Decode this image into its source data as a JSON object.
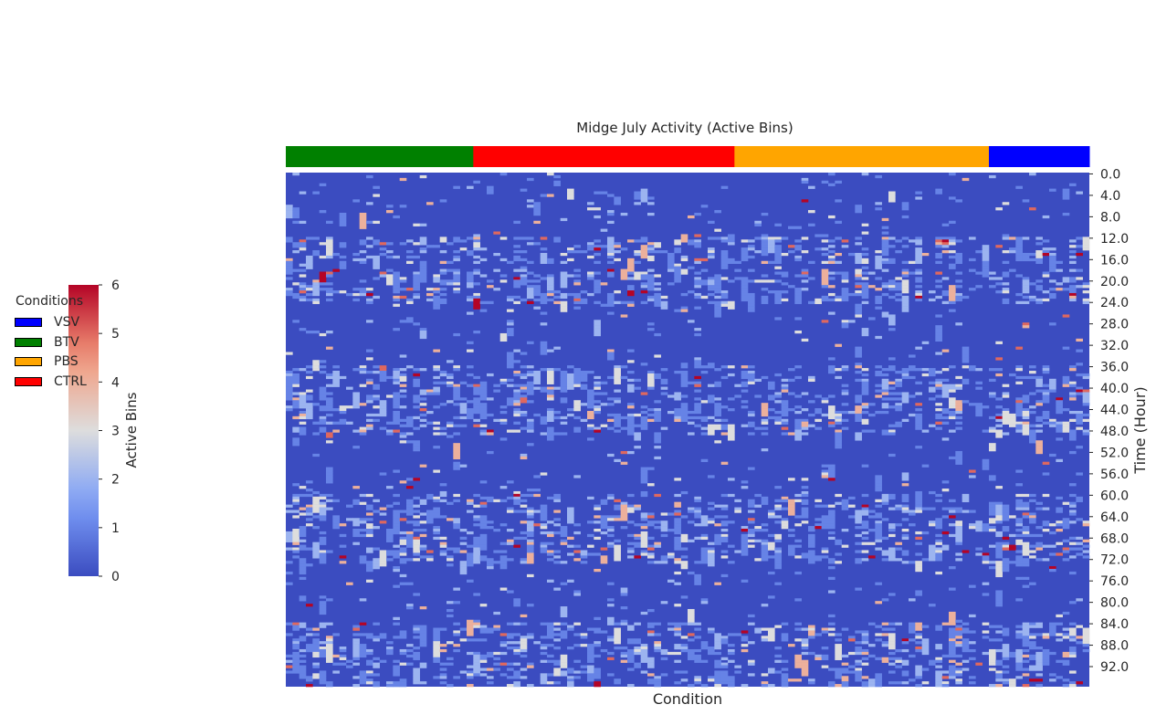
{
  "chart_data": {
    "type": "heatmap",
    "title": "Midge July Activity (Active Bins)",
    "xlabel": "Condition",
    "ylabel": "Time (Hour)",
    "y_tick_labels": [
      "0.0",
      "4.0",
      "8.0",
      "12.0",
      "16.0",
      "20.0",
      "24.0",
      "28.0",
      "32.0",
      "36.0",
      "40.0",
      "44.0",
      "48.0",
      "52.0",
      "56.0",
      "60.0",
      "64.0",
      "68.0",
      "72.0",
      "76.0",
      "80.0",
      "84.0",
      "88.0",
      "92.0"
    ],
    "y_tick_values": [
      0,
      4,
      8,
      12,
      16,
      20,
      24,
      28,
      32,
      36,
      40,
      44,
      48,
      52,
      56,
      60,
      64,
      68,
      72,
      76,
      80,
      84,
      88,
      92
    ],
    "time_range_hours": [
      0,
      96
    ],
    "time_step_hours": 0.5,
    "column_count": 120,
    "condition_groups": [
      {
        "name": "BTV",
        "columns": 28,
        "color": "#008000"
      },
      {
        "name": "CTRL",
        "columns": 39,
        "color": "#ff0000"
      },
      {
        "name": "PBS",
        "columns": 38,
        "color": "#ffa500"
      },
      {
        "name": "VSV",
        "columns": 15,
        "color": "#0000ff"
      }
    ],
    "colorbar": {
      "label": "Active Bins",
      "range": [
        0,
        6
      ],
      "ticks": [
        "0",
        "1",
        "2",
        "3",
        "4",
        "5",
        "6"
      ],
      "colormap": "coolwarm"
    },
    "active_windows_hours": [
      [
        12,
        17
      ],
      [
        18,
        24.5
      ],
      [
        36,
        49
      ],
      [
        60,
        73
      ],
      [
        84,
        96
      ]
    ],
    "legend": {
      "title": "Conditions",
      "items": [
        {
          "label": "VSV",
          "color": "#0000ff"
        },
        {
          "label": "BTV",
          "color": "#008000"
        },
        {
          "label": "PBS",
          "color": "#ffa500"
        },
        {
          "label": "CTRL",
          "color": "#ff0000"
        }
      ]
    }
  }
}
